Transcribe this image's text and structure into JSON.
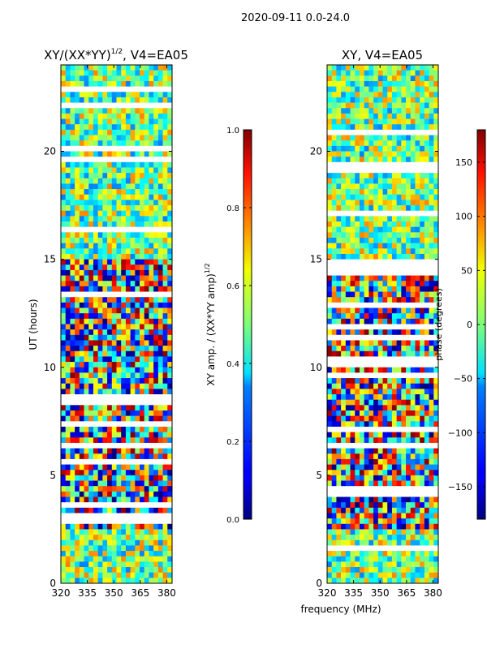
{
  "figure": {
    "suptitle": "2020-09-11 0.0-24.0",
    "shared_xlabel": "frequency (MHz)"
  },
  "chart_data": [
    {
      "type": "heatmap",
      "title": "XY/(XX*YY)^(1/2), V4=EA05",
      "title_main": "XY/(XX*YY)",
      "title_exp": "1/2",
      "title_suffix": ", V4=EA05",
      "xlabel": "frequency (MHz)",
      "ylabel": "UT (hours)",
      "xlim": [
        320,
        383
      ],
      "ylim": [
        0,
        24
      ],
      "xticks": [
        320,
        335,
        350,
        365,
        380
      ],
      "yticks": [
        0,
        5,
        10,
        15,
        20
      ],
      "colorbar": {
        "label": "XY amp. / (XX*YY amp)^(1/2)",
        "label_main": "XY amp. / (XX*YY amp)",
        "label_exp": "1/2",
        "range": [
          0.0,
          1.0
        ],
        "ticks": [
          "0.0",
          "0.2",
          "0.4",
          "0.6",
          "0.8",
          "1.0"
        ],
        "colormap": "jet"
      }
    },
    {
      "type": "heatmap",
      "title": "XY, V4=EA05",
      "xlabel": "frequency (MHz)",
      "ylabel": "",
      "xlim": [
        320,
        383
      ],
      "ylim": [
        0,
        24
      ],
      "xticks": [
        320,
        335,
        350,
        365,
        380
      ],
      "yticks": [
        0,
        5,
        10,
        15,
        20
      ],
      "colorbar": {
        "label": "phase (degrees)",
        "range": [
          -180,
          180
        ],
        "ticks": [
          "150",
          "100",
          "50",
          "0",
          "−50",
          "−100",
          "−150"
        ],
        "tick_values": [
          150,
          100,
          50,
          0,
          -50,
          -100,
          -150
        ],
        "colormap": "jet"
      }
    }
  ]
}
